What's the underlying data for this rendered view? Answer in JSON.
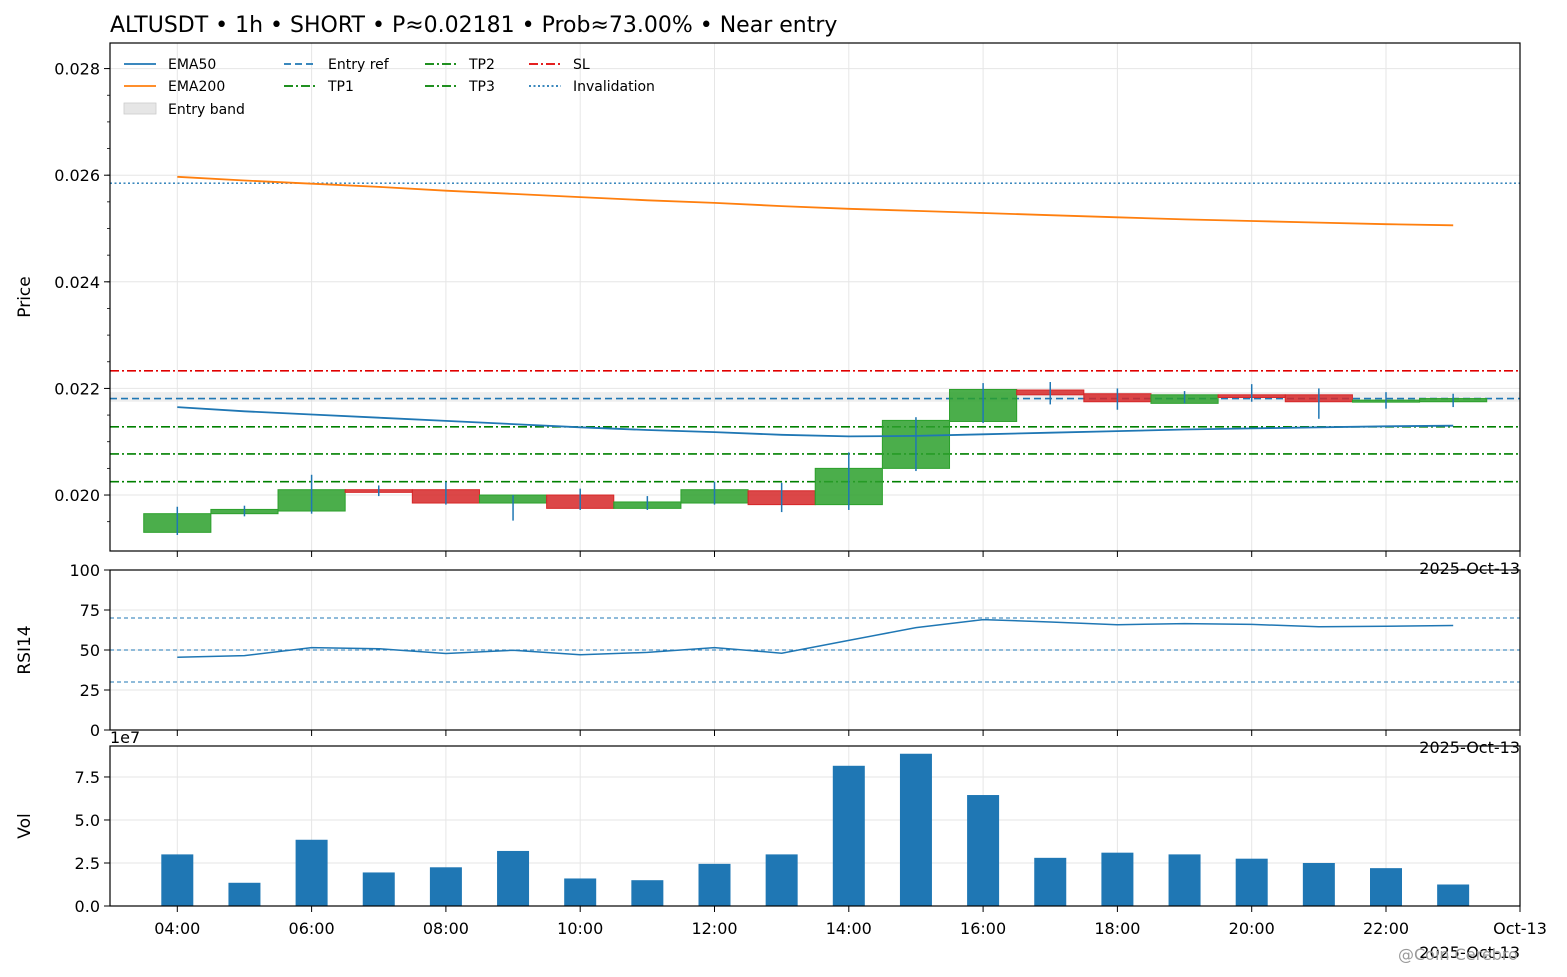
{
  "title": "ALTUSDT • 1h • SHORT • P≈0.02181 • Prob≈73.00% • Near entry",
  "watermark": "@Coin Cerebro",
  "colors": {
    "up": "#2ca02c",
    "down": "#d62728",
    "ema50": "#1f77b4",
    "ema200": "#ff7f0e",
    "entry": "#1f77b4",
    "tp": "#008000",
    "sl": "#e00000",
    "invalidation": "#1f77b4",
    "vol": "#1f77b4",
    "rsi": "#1f77b4",
    "grid": "#e6e6e6"
  },
  "chart_data": [
    {
      "type": "candlestick",
      "ylabel": "Price",
      "ylim": [
        0.01895,
        0.02848
      ],
      "yticks": [
        "0.020",
        "0.022",
        "0.024",
        "0.026",
        "0.028"
      ],
      "corner_label": "2025-Oct-13",
      "grid": true,
      "legend_placement": "top-left",
      "legend": [
        {
          "label": "EMA50",
          "style": "solid",
          "color": "#1f77b4"
        },
        {
          "label": "EMA200",
          "style": "solid",
          "color": "#ff7f0e"
        },
        {
          "label": "Entry band",
          "style": "patch",
          "color": "#e6e6e6"
        },
        {
          "label": "Entry ref",
          "style": "dashed",
          "color": "#1f77b4"
        },
        {
          "label": "TP1",
          "style": "dashdot",
          "color": "#008000"
        },
        {
          "label": "TP2",
          "style": "dashdot",
          "color": "#008000"
        },
        {
          "label": "TP3",
          "style": "dashdot",
          "color": "#008000"
        },
        {
          "label": "SL",
          "style": "dashdot",
          "color": "#e00000"
        },
        {
          "label": "Invalidation",
          "style": "dotted",
          "color": "#1f77b4"
        }
      ],
      "x": [
        "04:00",
        "05:00",
        "06:00",
        "07:00",
        "08:00",
        "09:00",
        "10:00",
        "11:00",
        "12:00",
        "13:00",
        "14:00",
        "15:00",
        "16:00",
        "17:00",
        "18:00",
        "19:00",
        "20:00",
        "21:00",
        "22:00",
        "23:00"
      ],
      "open": [
        0.0193,
        0.01965,
        0.0197,
        0.0201,
        0.0201,
        0.01985,
        0.02,
        0.01975,
        0.01985,
        0.02008,
        0.01982,
        0.0205,
        0.02138,
        0.02197,
        0.0219,
        0.02172,
        0.02188,
        0.02188,
        0.02175,
        0.02175
      ],
      "close": [
        0.01965,
        0.01973,
        0.0201,
        0.02005,
        0.01985,
        0.02,
        0.01975,
        0.01987,
        0.0201,
        0.01982,
        0.0205,
        0.0214,
        0.02198,
        0.02188,
        0.02175,
        0.02188,
        0.02183,
        0.02175,
        0.02178,
        0.02181
      ],
      "high": [
        0.01978,
        0.0198,
        0.02038,
        0.02018,
        0.02025,
        0.02,
        0.02012,
        0.01998,
        0.02025,
        0.02023,
        0.0208,
        0.02146,
        0.0221,
        0.02212,
        0.022,
        0.02195,
        0.02208,
        0.022,
        0.02193,
        0.0219
      ],
      "low": [
        0.01925,
        0.0196,
        0.01965,
        0.01998,
        0.01982,
        0.01952,
        0.01972,
        0.01972,
        0.01982,
        0.01968,
        0.01972,
        0.02045,
        0.02135,
        0.0217,
        0.0216,
        0.02172,
        0.02175,
        0.02143,
        0.02162,
        0.02165
      ],
      "ema50": [
        0.02165,
        0.02157,
        0.02151,
        0.02145,
        0.02139,
        0.02133,
        0.02127,
        0.02122,
        0.02118,
        0.02113,
        0.0211,
        0.02111,
        0.02114,
        0.02117,
        0.0212,
        0.02123,
        0.02125,
        0.02127,
        0.02129,
        0.0213
      ],
      "ema200": [
        0.02597,
        0.0259,
        0.02584,
        0.02578,
        0.02571,
        0.02565,
        0.02559,
        0.02553,
        0.02548,
        0.02542,
        0.02537,
        0.02533,
        0.02529,
        0.02525,
        0.02521,
        0.02517,
        0.02514,
        0.02511,
        0.02508,
        0.02506
      ],
      "levels": {
        "entry_ref": 0.02181,
        "entry_band": [
          0.02175,
          0.02193
        ],
        "tp1": 0.02128,
        "tp2": 0.02077,
        "tp3": 0.02025,
        "sl": 0.02233,
        "invalidation": 0.02585
      }
    },
    {
      "type": "line",
      "ylabel": "RSI14",
      "ylim": [
        0,
        100
      ],
      "yticks": [
        "0",
        "25",
        "50",
        "75",
        "100"
      ],
      "corner_label": "2025-Oct-13",
      "reference_lines": [
        70,
        50,
        30
      ],
      "x": [
        "04:00",
        "05:00",
        "06:00",
        "07:00",
        "08:00",
        "09:00",
        "10:00",
        "11:00",
        "12:00",
        "13:00",
        "14:00",
        "15:00",
        "16:00",
        "17:00",
        "18:00",
        "19:00",
        "20:00",
        "21:00",
        "22:00",
        "23:00"
      ],
      "values": [
        45.5,
        46.5,
        51.5,
        50.8,
        47.8,
        49.8,
        47.0,
        48.5,
        51.5,
        48.0,
        56.0,
        64.0,
        69.0,
        67.5,
        65.8,
        66.5,
        66.0,
        64.5,
        64.8,
        65.3
      ]
    },
    {
      "type": "bar",
      "ylabel": "Vol",
      "ylim": [
        0,
        9.3
      ],
      "yticks": [
        "0.0",
        "2.5",
        "5.0",
        "7.5"
      ],
      "scale_label": "1e7",
      "x": [
        "04:00",
        "05:00",
        "06:00",
        "07:00",
        "08:00",
        "09:00",
        "10:00",
        "11:00",
        "12:00",
        "13:00",
        "14:00",
        "15:00",
        "16:00",
        "17:00",
        "18:00",
        "19:00",
        "20:00",
        "21:00",
        "22:00",
        "23:00"
      ],
      "values": [
        3.0,
        1.35,
        3.85,
        1.95,
        2.25,
        3.2,
        1.6,
        1.5,
        2.45,
        3.0,
        8.15,
        8.85,
        6.45,
        2.8,
        3.1,
        3.0,
        2.75,
        2.5,
        2.2,
        1.25
      ]
    }
  ],
  "xaxis": {
    "ticks": [
      "04:00",
      "06:00",
      "08:00",
      "10:00",
      "12:00",
      "14:00",
      "16:00",
      "18:00",
      "20:00",
      "22:00",
      "Oct-13"
    ],
    "corner_label": "2025-Oct-13"
  }
}
